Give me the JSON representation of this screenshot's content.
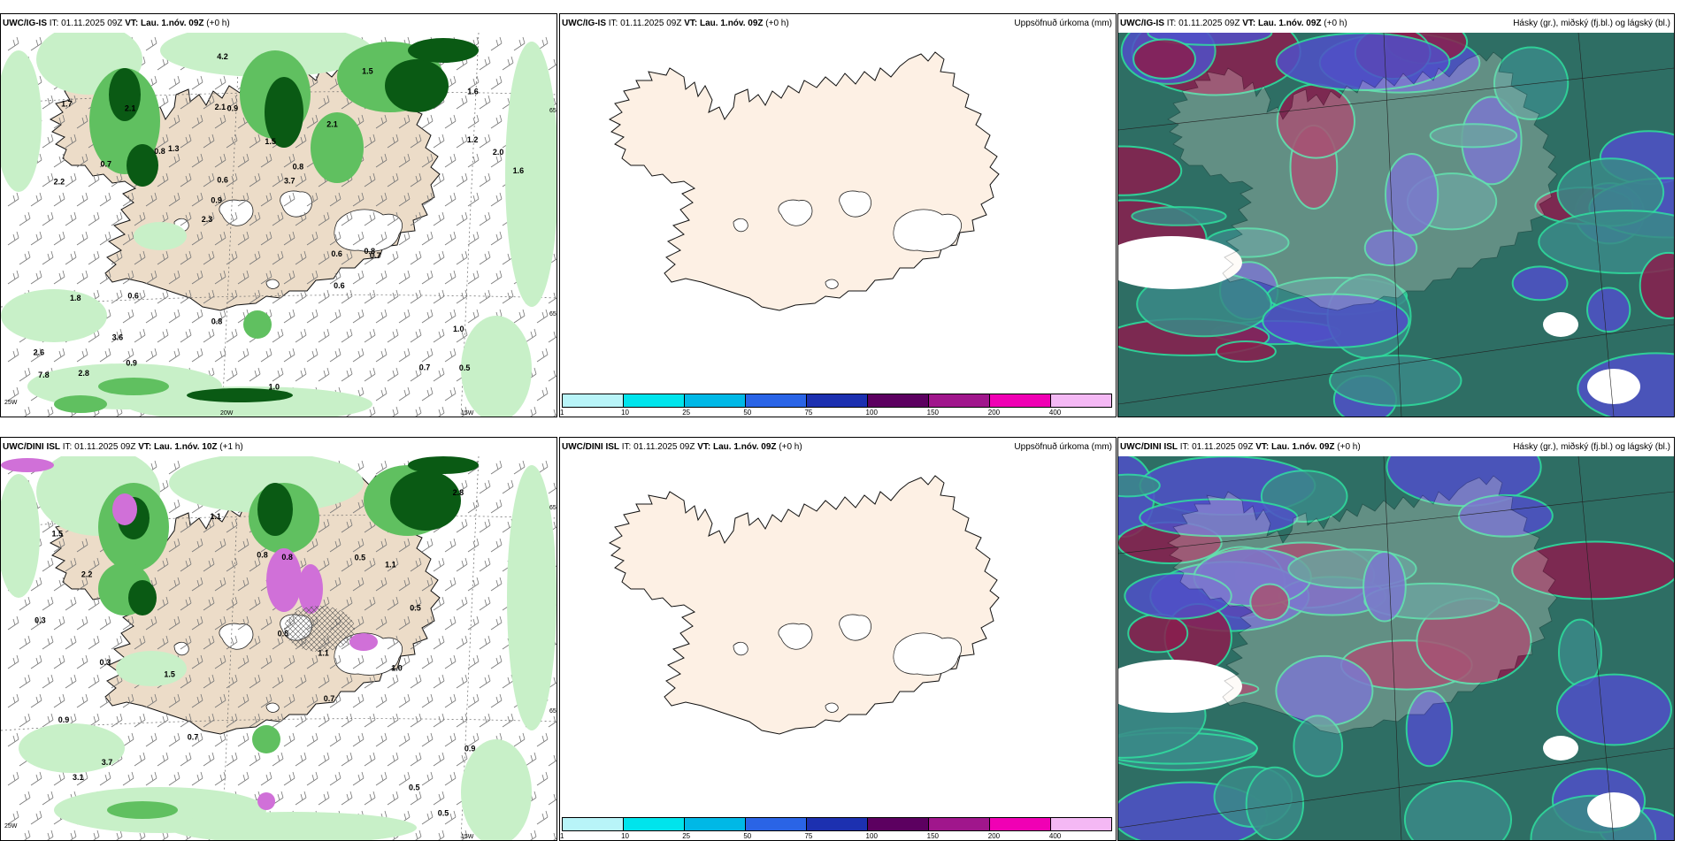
{
  "panels": [
    {
      "id": "p1",
      "model": "UWC/IG-IS",
      "it_label": "IT:",
      "it_value": "01.11.2025 09Z",
      "vt_label": "VT:",
      "vt_value": "Lau. 1.nóv. 09Z",
      "lead": "(+0 h)",
      "right_title": "",
      "kind": "precip",
      "values": [
        "0.5",
        "2.2",
        "1.6",
        "2.3",
        "2.1",
        "2.8",
        "2.1",
        "1.5",
        "1.8",
        "1.3",
        "2.6",
        "3.6",
        "0.9",
        "0.8",
        "0.7",
        "1.7",
        "4.2",
        "1.6",
        "0.6",
        "1.2",
        "0.9",
        "0.8",
        "0.6",
        "2.1",
        "1.5",
        "0.6",
        "0.7",
        "1.0",
        "0.8",
        "1.0",
        "0.8",
        "0.7",
        "0.6",
        "0.9",
        "2.0",
        "3.7",
        "7.8"
      ],
      "grid_labels": [
        "25W",
        "20W",
        "15W",
        "65N",
        "65N"
      ]
    },
    {
      "id": "p2",
      "model": "UWC/IG-IS",
      "it_label": "IT:",
      "it_value": "01.11.2025 09Z",
      "vt_label": "VT:",
      "vt_value": "Lau. 1.nóv. 09Z",
      "lead": "(+0 h)",
      "right_title": "Uppsöfnuð úrkoma (mm)",
      "kind": "accum"
    },
    {
      "id": "p3",
      "model": "UWC/IG-IS",
      "it_label": "IT:",
      "it_value": "01.11.2025 09Z",
      "vt_label": "VT:",
      "vt_value": "Lau. 1.nóv. 09Z",
      "lead": "(+0 h)",
      "right_title": "Hásky (gr.), miðský (fj.bl.) og lágský (bl.)",
      "kind": "cloud"
    },
    {
      "id": "p4",
      "model": "UWC/DINI ISL",
      "it_label": "IT:",
      "it_value": "01.11.2025 09Z",
      "vt_label": "VT:",
      "vt_value": "Lau. 1.nóv. 10Z",
      "lead": "(+1 h)",
      "right_title": "",
      "kind": "precip2",
      "values": [
        "0.5",
        "0.3",
        "0.7",
        "1.5",
        "0.9",
        "2.2",
        "3.7",
        "1.5",
        "1.1",
        "0.8",
        "0.5",
        "0.5",
        "0.7",
        "1.1",
        "1.1",
        "0.9",
        "1.0",
        "0.5",
        "0.3",
        "3.1",
        "2.8",
        "0.8",
        "0.5"
      ],
      "grid_labels": [
        "25W",
        "15W",
        "65N",
        "65N"
      ]
    },
    {
      "id": "p5",
      "model": "UWC/DINI ISL",
      "it_label": "IT:",
      "it_value": "01.11.2025 09Z",
      "vt_label": "VT:",
      "vt_value": "Lau. 1.nóv. 09Z",
      "lead": "(+0 h)",
      "right_title": "Uppsöfnuð úrkoma (mm)",
      "kind": "accum"
    },
    {
      "id": "p6",
      "model": "UWC/DINI ISL",
      "it_label": "IT:",
      "it_value": "01.11.2025 09Z",
      "vt_label": "VT:",
      "vt_value": "Lau. 1.nóv. 09Z",
      "lead": "(+0 h)",
      "right_title": "Hásky (gr.), miðský (fj.bl.) og lágský (bl.)",
      "kind": "cloud"
    }
  ],
  "colorbar": {
    "labels": [
      "1",
      "10",
      "25",
      "50",
      "75",
      "100",
      "150",
      "200",
      "400"
    ],
    "colors": [
      "#b8f4f8",
      "#00e4ec",
      "#00b8e6",
      "#2a64e6",
      "#1c30b0",
      "#5c0060",
      "#a0168c",
      "#f000b4",
      "#f4b8f4"
    ]
  },
  "map_colors": {
    "land": "#fdf0e4",
    "land_tan": "#ecdcc8",
    "sea": "#ffffff",
    "precip_light": "#c8f0c8",
    "precip_mid": "#60c060",
    "precip_dark": "#0a5a14",
    "snow": "#d070d8",
    "cloud_high": "#2e6e64",
    "cloud_mid": "#5050c8",
    "cloud_low": "#8a1e4e",
    "cloud_edge": "#30e0a0"
  }
}
